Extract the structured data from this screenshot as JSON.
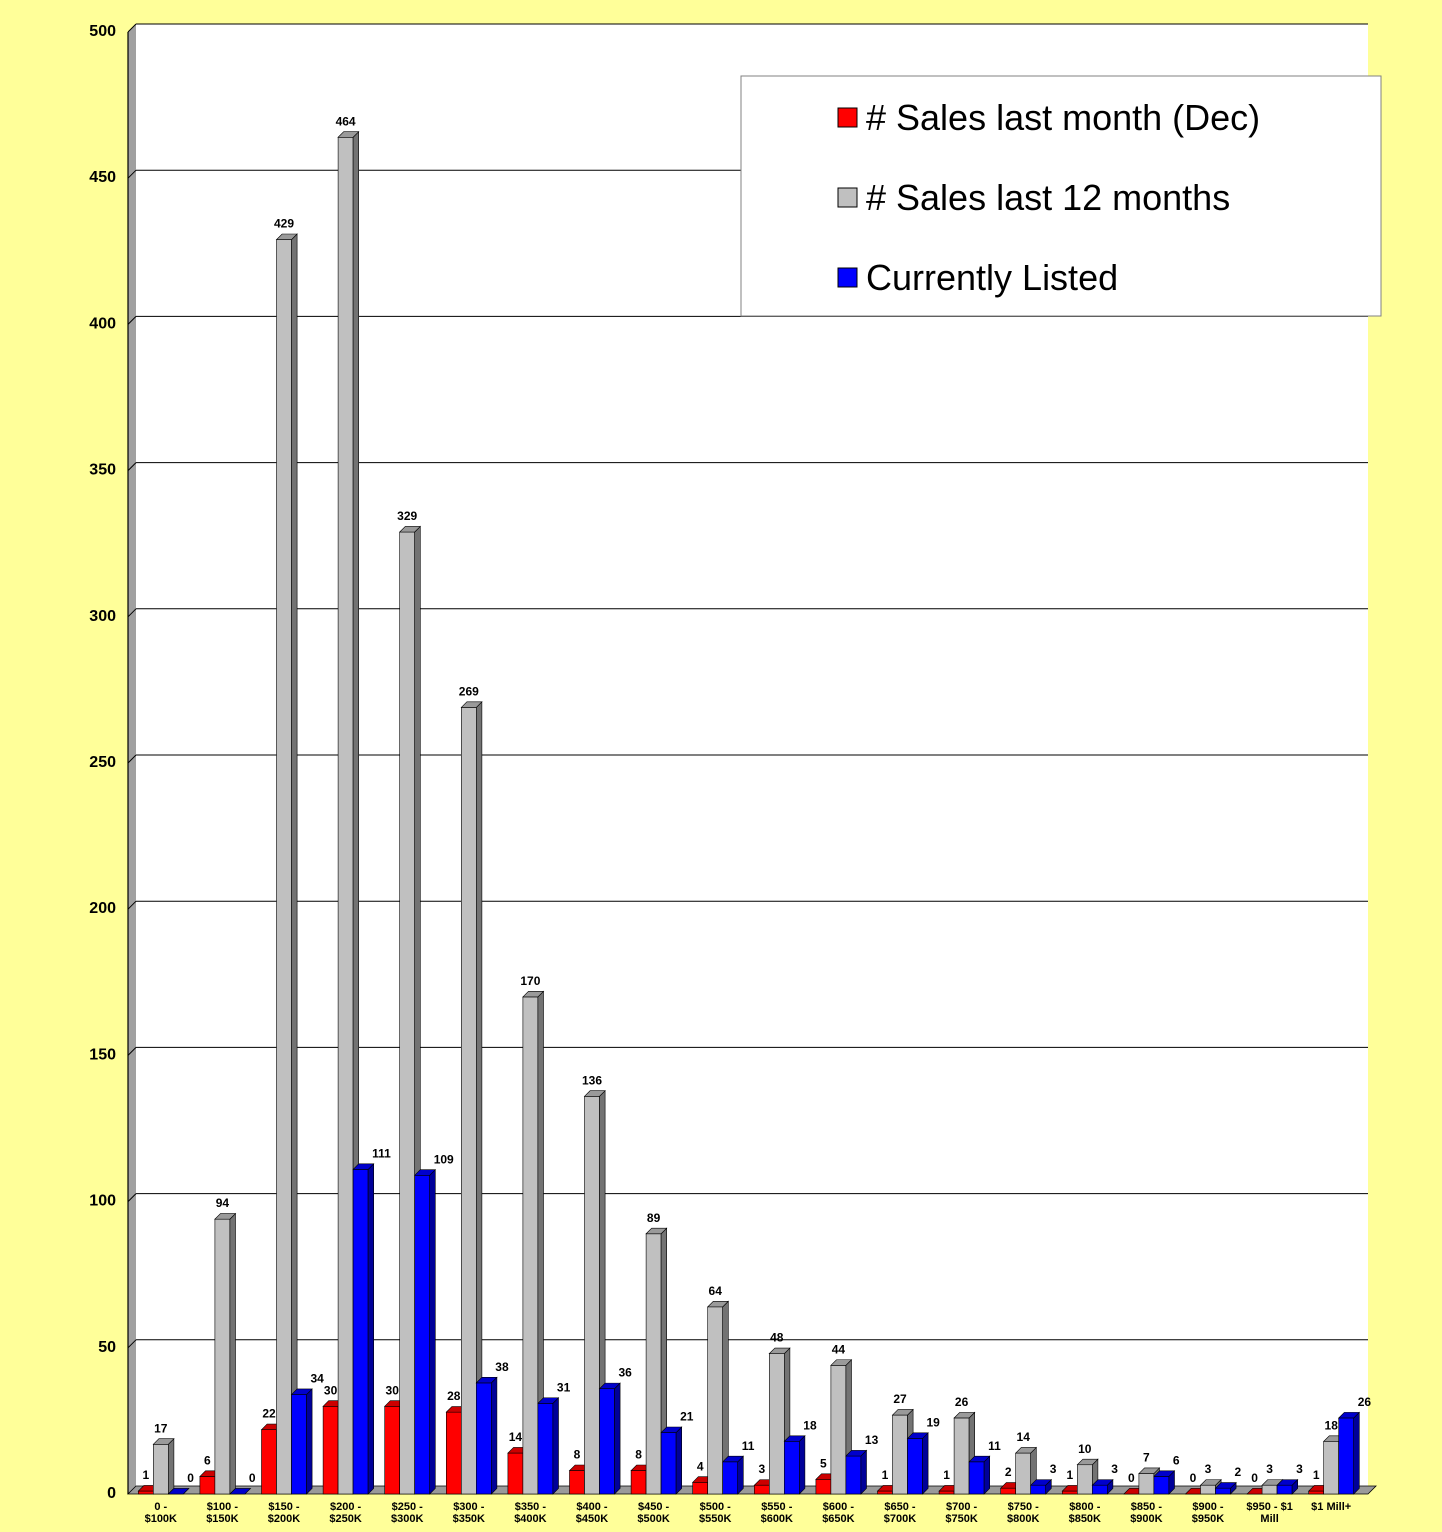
{
  "chart_data": {
    "type": "bar",
    "categories": [
      [
        "0 -",
        "$100K"
      ],
      [
        "$100 -",
        "$150K"
      ],
      [
        "$150 -",
        "$200K"
      ],
      [
        "$200 -",
        "$250K"
      ],
      [
        "$250 -",
        "$300K"
      ],
      [
        "$300 -",
        "$350K"
      ],
      [
        "$350 -",
        "$400K"
      ],
      [
        "$400 -",
        "$450K"
      ],
      [
        "$450 -",
        "$500K"
      ],
      [
        "$500 -",
        "$550K"
      ],
      [
        "$550 -",
        "$600K"
      ],
      [
        "$600 -",
        "$650K"
      ],
      [
        "$650 -",
        "$700K"
      ],
      [
        "$700 -",
        "$750K"
      ],
      [
        "$750 -",
        "$800K"
      ],
      [
        "$800 -",
        "$850K"
      ],
      [
        "$850 -",
        "$900K"
      ],
      [
        "$900 -",
        "$950K"
      ],
      [
        "$950 - $1",
        "Mill"
      ],
      [
        "$1 Mill+"
      ]
    ],
    "series": [
      {
        "name": "# Sales last month (Dec)",
        "color": "#ff0000",
        "values": [
          1,
          6,
          22,
          30,
          30,
          28,
          14,
          8,
          8,
          4,
          3,
          5,
          1,
          1,
          2,
          1,
          0,
          0,
          0,
          1
        ]
      },
      {
        "name": "# Sales last 12 months",
        "color": "#c0c0c0",
        "values": [
          17,
          94,
          429,
          464,
          329,
          269,
          170,
          136,
          89,
          64,
          48,
          44,
          27,
          26,
          14,
          10,
          7,
          3,
          3,
          18
        ]
      },
      {
        "name": "Currently Listed",
        "color": "#0000ff",
        "values": [
          0,
          0,
          34,
          111,
          109,
          38,
          31,
          36,
          21,
          11,
          18,
          13,
          19,
          11,
          3,
          3,
          6,
          2,
          3,
          26
        ]
      }
    ],
    "ylim": [
      0,
      500
    ],
    "yticks": [
      0,
      50,
      100,
      150,
      200,
      250,
      300,
      350,
      400,
      450,
      500
    ],
    "grid": true,
    "legend": "top-right",
    "title": "",
    "xlabel": "",
    "ylabel": ""
  }
}
